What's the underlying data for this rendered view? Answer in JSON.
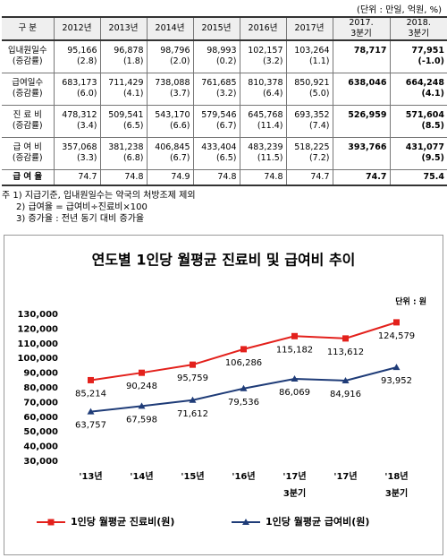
{
  "unit": "(단위 : 만일, 억원, %)",
  "table": {
    "header": [
      "구  분",
      "2012년",
      "2013년",
      "2014년",
      "2015년",
      "2016년",
      "2017년",
      "2017.\n3분기",
      "2018.\n3분기"
    ],
    "rows": [
      {
        "label": "입내원일수",
        "sublabel": "(증감률)",
        "values": [
          "95,166",
          "96,878",
          "98,796",
          "98,993",
          "102,157",
          "103,264",
          "78,717",
          "77,951"
        ],
        "changes": [
          "(2.8)",
          "(1.8)",
          "(2.0)",
          "(0.2)",
          "(3.2)",
          "(1.1)",
          null,
          "(-1.0)"
        ]
      },
      {
        "label": "급여일수",
        "sublabel": "(증감률)",
        "values": [
          "683,173",
          "711,429",
          "738,088",
          "761,685",
          "810,378",
          "850,921",
          "638,046",
          "664,248"
        ],
        "changes": [
          "(6.0)",
          "(4.1)",
          "(3.7)",
          "(3.2)",
          "(6.4)",
          "(5.0)",
          null,
          "(4.1)"
        ]
      },
      {
        "label": "진 료 비",
        "sublabel": "(증감률)",
        "values": [
          "478,312",
          "509,541",
          "543,170",
          "579,546",
          "645,768",
          "693,352",
          "526,959",
          "571,604"
        ],
        "changes": [
          "(3.4)",
          "(6.5)",
          "(6.6)",
          "(6.7)",
          "(11.4)",
          "(7.4)",
          null,
          "(8.5)"
        ]
      },
      {
        "label": "급 여 비",
        "sublabel": "(증감률)",
        "values": [
          "357,068",
          "381,238",
          "406,845",
          "433,404",
          "483,239",
          "518,225",
          "393,766",
          "431,077"
        ],
        "changes": [
          "(3.3)",
          "(6.8)",
          "(6.7)",
          "(6.5)",
          "(11.5)",
          "(7.2)",
          null,
          "(9.5)"
        ]
      },
      {
        "label": "급 여 율",
        "values": [
          "74.7",
          "74.8",
          "74.9",
          "74.8",
          "74.8",
          "74.7",
          "74.7",
          "75.4"
        ]
      }
    ]
  },
  "notes": [
    "주 1) 지급기준, 입내원일수는 약국의 처방조제 제외",
    "2) 급여율 = 급여비÷진료비×100",
    "3) 증가율 : 전년 동기 대비 증가율"
  ],
  "chart_data": {
    "type": "line",
    "title": "연도별 1인당 월평균 진료비 및 급여비 추이",
    "unit": "단위 : 원",
    "categories": [
      "'13년",
      "'14년",
      "'15년",
      "'16년",
      "'17년\n3분기",
      "'17년",
      "'18년\n3분기"
    ],
    "series": [
      {
        "name": "1인당 월평균 진료비(원)",
        "color": "#e3211c",
        "marker": "square",
        "values": [
          85214,
          90248,
          95759,
          106286,
          115182,
          113612,
          124579
        ],
        "value_labels": [
          "85,214",
          "90,248",
          "95,759",
          "106,286",
          "115,182",
          "113,612",
          "124,579"
        ]
      },
      {
        "name": "1인당 월평균 급여비(원)",
        "color": "#1f3c78",
        "marker": "triangle",
        "values": [
          63757,
          67598,
          71612,
          79536,
          86069,
          84916,
          93952
        ],
        "value_labels": [
          "63,757",
          "67,598",
          "71,612",
          "79,536",
          "86,069",
          "84,916",
          "93,952"
        ]
      }
    ],
    "ylim": [
      30000,
      130000
    ],
    "yticks": [
      {
        "value": 30000,
        "label": "30,000"
      },
      {
        "value": 40000,
        "label": "40,000"
      },
      {
        "value": 50000,
        "label": "50,000"
      },
      {
        "value": 60000,
        "label": "60,000"
      },
      {
        "value": 70000,
        "label": "70,000"
      },
      {
        "value": 80000,
        "label": "80,000"
      },
      {
        "value": 90000,
        "label": "90,000"
      },
      {
        "value": 100000,
        "label": "100,000"
      },
      {
        "value": 110000,
        "label": "110,000"
      },
      {
        "value": 120000,
        "label": "120,000"
      },
      {
        "value": 130000,
        "label": "130,000"
      }
    ],
    "grid": false,
    "legend": "bottom"
  }
}
